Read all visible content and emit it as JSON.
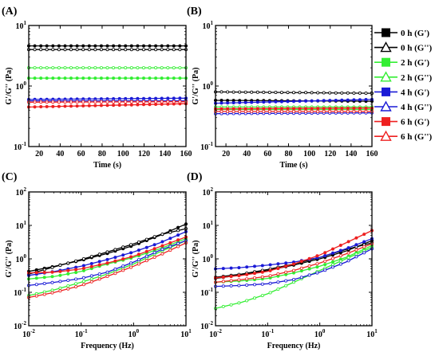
{
  "legend": [
    {
      "label": "0 h (G')",
      "color": "#000000",
      "filled": true,
      "marker": "square"
    },
    {
      "label": "0 h (G'')",
      "color": "#000000",
      "filled": false,
      "marker": "triangle"
    },
    {
      "label": "2 h (G')",
      "color": "#33ee33",
      "filled": true,
      "marker": "square"
    },
    {
      "label": "2 h (G'')",
      "color": "#33ee33",
      "filled": false,
      "marker": "triangle"
    },
    {
      "label": "4 h (G')",
      "color": "#1a1ad6",
      "filled": true,
      "marker": "square"
    },
    {
      "label": "4 h (G'')",
      "color": "#1a1ad6",
      "filled": false,
      "marker": "triangle"
    },
    {
      "label": "6 h (G')",
      "color": "#ee2020",
      "filled": true,
      "marker": "square"
    },
    {
      "label": "6 h (G'')",
      "color": "#ee2020",
      "filled": false,
      "marker": "triangle"
    }
  ],
  "chart_data": [
    {
      "id": "A",
      "panel_label": "(A)",
      "type": "line",
      "xlabel": "Time (s)",
      "ylabel": "G'/G'' (Pa)",
      "xlim": [
        10,
        160
      ],
      "ylim": [
        0.1,
        10
      ],
      "yscale": "log",
      "xticks": [
        20,
        40,
        60,
        80,
        100,
        120,
        140,
        160
      ],
      "yticks": [
        {
          "v": 0.1,
          "exp": "-1"
        },
        {
          "v": 1,
          "exp": "0"
        },
        {
          "v": 10,
          "exp": "1"
        }
      ],
      "x": [
        10,
        160
      ],
      "series": [
        {
          "name": "0 h (G')",
          "color": "#000000",
          "filled": true,
          "values": [
            4.6,
            4.6
          ]
        },
        {
          "name": "0 h (G'')",
          "color": "#000000",
          "filled": false,
          "values": [
            4.0,
            4.0
          ]
        },
        {
          "name": "2 h (G')",
          "color": "#33ee33",
          "filled": true,
          "values": [
            1.35,
            1.35
          ]
        },
        {
          "name": "2 h (G'')",
          "color": "#33ee33",
          "filled": false,
          "values": [
            2.0,
            2.0
          ]
        },
        {
          "name": "4 h (G')",
          "color": "#1a1ad6",
          "filled": true,
          "values": [
            0.6,
            0.63
          ]
        },
        {
          "name": "4 h (G'')",
          "color": "#1a1ad6",
          "filled": false,
          "values": [
            0.57,
            0.57
          ]
        },
        {
          "name": "6 h (G')",
          "color": "#ee2020",
          "filled": true,
          "values": [
            0.45,
            0.51
          ]
        },
        {
          "name": "6 h (G'')",
          "color": "#ee2020",
          "filled": false,
          "values": [
            0.54,
            0.55
          ]
        }
      ]
    },
    {
      "id": "B",
      "panel_label": "(B)",
      "type": "line",
      "xlabel": "Time (s)",
      "ylabel": "G'/G'' (Pa)",
      "xlim": [
        10,
        160
      ],
      "ylim": [
        0.1,
        10
      ],
      "yscale": "log",
      "xticks": [
        20,
        40,
        60,
        80,
        100,
        120,
        140,
        160
      ],
      "yticks": [
        {
          "v": 0.1,
          "exp": "-1"
        },
        {
          "v": 1,
          "exp": "0"
        },
        {
          "v": 10,
          "exp": "1"
        }
      ],
      "x": [
        10,
        160
      ],
      "series": [
        {
          "name": "0 h (G')",
          "color": "#000000",
          "filled": true,
          "values": [
            0.58,
            0.56
          ]
        },
        {
          "name": "0 h (G'')",
          "color": "#000000",
          "filled": false,
          "values": [
            0.8,
            0.76
          ]
        },
        {
          "name": "2 h (G')",
          "color": "#33ee33",
          "filled": true,
          "values": [
            0.41,
            0.41
          ]
        },
        {
          "name": "2 h (G'')",
          "color": "#33ee33",
          "filled": false,
          "values": [
            0.45,
            0.45
          ]
        },
        {
          "name": "4 h (G')",
          "color": "#1a1ad6",
          "filled": true,
          "values": [
            0.52,
            0.6
          ]
        },
        {
          "name": "4 h (G'')",
          "color": "#1a1ad6",
          "filled": false,
          "values": [
            0.35,
            0.36
          ]
        },
        {
          "name": "6 h (G')",
          "color": "#ee2020",
          "filled": true,
          "values": [
            0.42,
            0.43
          ]
        },
        {
          "name": "6 h (G'')",
          "color": "#ee2020",
          "filled": false,
          "values": [
            0.38,
            0.38
          ]
        }
      ]
    },
    {
      "id": "C",
      "panel_label": "(C)",
      "type": "line",
      "xlabel": "Frequency (Hz)",
      "ylabel": "G'/G'' (Pa)",
      "xlim": [
        0.01,
        10
      ],
      "ylim": [
        0.01,
        100
      ],
      "xscale": "log",
      "yscale": "log",
      "xticks": [
        {
          "v": 0.01,
          "exp": "-2"
        },
        {
          "v": 0.1,
          "exp": "-1"
        },
        {
          "v": 1,
          "exp": "0"
        },
        {
          "v": 10,
          "exp": "1"
        }
      ],
      "yticks": [
        {
          "v": 0.01,
          "exp": "-2"
        },
        {
          "v": 0.1,
          "exp": "-1"
        },
        {
          "v": 1,
          "exp": "0"
        },
        {
          "v": 10,
          "exp": "1"
        },
        {
          "v": 100,
          "exp": "2"
        }
      ],
      "x": [
        0.01,
        0.0316,
        0.1,
        0.316,
        1,
        3.16,
        10
      ],
      "series": [
        {
          "name": "0 h (G')",
          "color": "#000000",
          "filled": true,
          "values": [
            0.42,
            0.6,
            0.9,
            1.45,
            2.5,
            5.0,
            11.0
          ]
        },
        {
          "name": "0 h (G'')",
          "color": "#000000",
          "filled": false,
          "values": [
            0.35,
            0.58,
            0.95,
            1.6,
            2.8,
            5.2,
            8.0
          ]
        },
        {
          "name": "2 h (G')",
          "color": "#33ee33",
          "filled": true,
          "values": [
            0.25,
            0.3,
            0.42,
            0.7,
            1.1,
            2.0,
            4.0
          ]
        },
        {
          "name": "2 h (G'')",
          "color": "#33ee33",
          "filled": false,
          "values": [
            0.08,
            0.12,
            0.2,
            0.35,
            0.7,
            1.6,
            3.5
          ]
        },
        {
          "name": "4 h (G')",
          "color": "#1a1ad6",
          "filled": true,
          "values": [
            0.32,
            0.42,
            0.6,
            0.95,
            1.6,
            3.0,
            6.5
          ]
        },
        {
          "name": "4 h (G'')",
          "color": "#1a1ad6",
          "filled": false,
          "values": [
            0.16,
            0.2,
            0.26,
            0.4,
            0.8,
            1.8,
            3.5
          ]
        },
        {
          "name": "6 h (G')",
          "color": "#ee2020",
          "filled": true,
          "values": [
            0.38,
            0.4,
            0.5,
            0.75,
            1.2,
            2.3,
            4.5
          ]
        },
        {
          "name": "6 h (G'')",
          "color": "#ee2020",
          "filled": false,
          "values": [
            0.07,
            0.1,
            0.16,
            0.3,
            0.6,
            1.3,
            3.0
          ]
        }
      ]
    },
    {
      "id": "D",
      "panel_label": "(D)",
      "type": "line",
      "xlabel": "Frequency (Hz)",
      "ylabel": "G'/G'' (Pa)",
      "xlim": [
        0.01,
        10
      ],
      "ylim": [
        0.01,
        100
      ],
      "xscale": "log",
      "yscale": "log",
      "xticks": [
        {
          "v": 0.01,
          "exp": "-2"
        },
        {
          "v": 0.1,
          "exp": "-1"
        },
        {
          "v": 1,
          "exp": "0"
        },
        {
          "v": 10,
          "exp": "1"
        }
      ],
      "yticks": [
        {
          "v": 0.01,
          "exp": "-2"
        },
        {
          "v": 0.1,
          "exp": "-1"
        },
        {
          "v": 1,
          "exp": "0"
        },
        {
          "v": 10,
          "exp": "1"
        },
        {
          "v": 100,
          "exp": "2"
        }
      ],
      "x": [
        0.01,
        0.0316,
        0.1,
        0.316,
        1,
        3.16,
        10
      ],
      "series": [
        {
          "name": "0 h (G')",
          "color": "#000000",
          "filled": true,
          "values": [
            0.26,
            0.33,
            0.45,
            0.65,
            1.0,
            1.7,
            3.5
          ]
        },
        {
          "name": "0 h (G'')",
          "color": "#000000",
          "filled": false,
          "values": [
            0.28,
            0.35,
            0.48,
            0.7,
            1.1,
            1.9,
            3.0
          ]
        },
        {
          "name": "2 h (G')",
          "color": "#33ee33",
          "filled": true,
          "values": [
            0.2,
            0.22,
            0.26,
            0.38,
            0.6,
            1.1,
            2.5
          ]
        },
        {
          "name": "2 h (G'')",
          "color": "#33ee33",
          "filled": false,
          "values": [
            0.033,
            0.05,
            0.09,
            0.2,
            0.45,
            1.0,
            2.2
          ]
        },
        {
          "name": "4 h (G')",
          "color": "#1a1ad6",
          "filled": true,
          "values": [
            0.5,
            0.55,
            0.65,
            0.8,
            1.1,
            2.0,
            4.0
          ]
        },
        {
          "name": "4 h (G'')",
          "color": "#1a1ad6",
          "filled": false,
          "values": [
            0.15,
            0.16,
            0.18,
            0.24,
            0.4,
            0.8,
            2.0
          ]
        },
        {
          "name": "6 h (G')",
          "color": "#ee2020",
          "filled": true,
          "values": [
            0.27,
            0.32,
            0.42,
            0.7,
            1.3,
            3.0,
            7.0
          ]
        },
        {
          "name": "6 h (G'')",
          "color": "#ee2020",
          "filled": false,
          "values": [
            0.2,
            0.24,
            0.3,
            0.45,
            0.75,
            1.4,
            2.8
          ]
        }
      ]
    }
  ]
}
